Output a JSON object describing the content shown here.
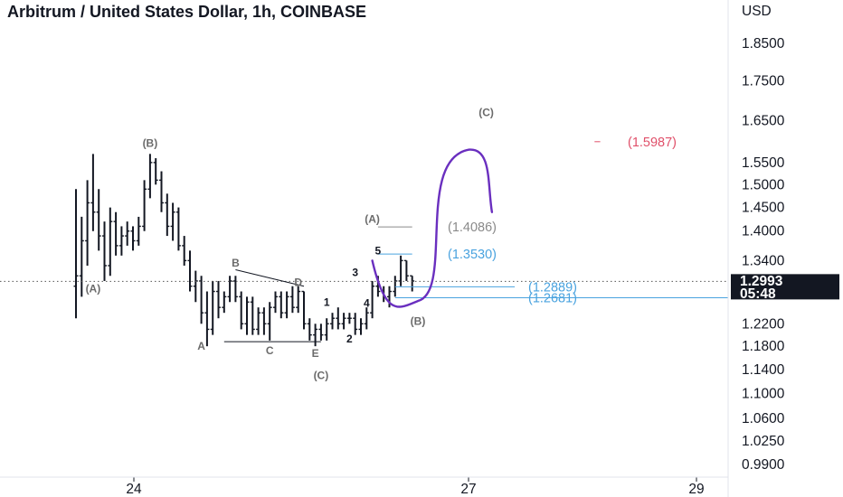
{
  "header": {
    "title": "Arbitrum / United States Dollar, 1h, COINBASE"
  },
  "price_axis": {
    "currency": "USD",
    "ticks": [
      "1.8500",
      "1.7500",
      "1.6500",
      "1.5500",
      "1.5000",
      "1.4500",
      "1.4000",
      "1.3400",
      "1.2200",
      "1.1800",
      "1.1400",
      "1.1000",
      "1.0600",
      "1.0250",
      "0.9900"
    ],
    "tick_values": [
      1.85,
      1.75,
      1.65,
      1.55,
      1.5,
      1.45,
      1.4,
      1.34,
      1.22,
      1.18,
      1.14,
      1.1,
      1.06,
      1.025,
      0.99
    ],
    "scale": "log",
    "current_price": "1.2993",
    "countdown": "05:48"
  },
  "time_axis": {
    "ticks": [
      "24",
      "27",
      "29"
    ]
  },
  "colors": {
    "candle": "#131722",
    "projection": "#6a2fbf",
    "target_text": "#e0506a",
    "fib_blue": "#4aa3df",
    "fib_grey": "#8a8a8a",
    "badge_bg": "#131722"
  },
  "chart_data": {
    "type": "ohlc",
    "title": "Arbitrum / United States Dollar, 1h, COINBASE",
    "y_scale": "log",
    "ylim": [
      0.97,
      1.95
    ],
    "x_ticks": [
      "24",
      "27",
      "29"
    ],
    "bars": [
      [
        1.29,
        1.49,
        1.23,
        1.31
      ],
      [
        1.31,
        1.43,
        1.27,
        1.38
      ],
      [
        1.38,
        1.51,
        1.33,
        1.46
      ],
      [
        1.46,
        1.57,
        1.4,
        1.44
      ],
      [
        1.44,
        1.49,
        1.36,
        1.39
      ],
      [
        1.39,
        1.42,
        1.3,
        1.33
      ],
      [
        1.33,
        1.45,
        1.31,
        1.42
      ],
      [
        1.42,
        1.44,
        1.35,
        1.37
      ],
      [
        1.37,
        1.41,
        1.35,
        1.39
      ],
      [
        1.39,
        1.42,
        1.37,
        1.4
      ],
      [
        1.4,
        1.41,
        1.36,
        1.38
      ],
      [
        1.38,
        1.43,
        1.37,
        1.41
      ],
      [
        1.41,
        1.51,
        1.4,
        1.49
      ],
      [
        1.49,
        1.57,
        1.47,
        1.55
      ],
      [
        1.55,
        1.56,
        1.5,
        1.51
      ],
      [
        1.51,
        1.53,
        1.44,
        1.46
      ],
      [
        1.46,
        1.48,
        1.39,
        1.41
      ],
      [
        1.41,
        1.46,
        1.38,
        1.44
      ],
      [
        1.44,
        1.45,
        1.36,
        1.37
      ],
      [
        1.37,
        1.39,
        1.33,
        1.34
      ],
      [
        1.34,
        1.36,
        1.28,
        1.29
      ],
      [
        1.29,
        1.32,
        1.26,
        1.3
      ],
      [
        1.3,
        1.31,
        1.22,
        1.24
      ],
      [
        1.24,
        1.28,
        1.18,
        1.21
      ],
      [
        1.21,
        1.3,
        1.2,
        1.28
      ],
      [
        1.28,
        1.3,
        1.23,
        1.25
      ],
      [
        1.25,
        1.28,
        1.24,
        1.27
      ],
      [
        1.27,
        1.31,
        1.26,
        1.3
      ],
      [
        1.3,
        1.31,
        1.26,
        1.27
      ],
      [
        1.27,
        1.28,
        1.21,
        1.22
      ],
      [
        1.22,
        1.27,
        1.2,
        1.26
      ],
      [
        1.26,
        1.27,
        1.2,
        1.21
      ],
      [
        1.21,
        1.25,
        1.2,
        1.24
      ],
      [
        1.24,
        1.25,
        1.2,
        1.22
      ],
      [
        1.22,
        1.26,
        1.19,
        1.25
      ],
      [
        1.25,
        1.28,
        1.24,
        1.27
      ],
      [
        1.27,
        1.28,
        1.23,
        1.24
      ],
      [
        1.24,
        1.28,
        1.23,
        1.27
      ],
      [
        1.27,
        1.29,
        1.24,
        1.25
      ],
      [
        1.25,
        1.29,
        1.24,
        1.28
      ],
      [
        1.28,
        1.28,
        1.21,
        1.22
      ],
      [
        1.22,
        1.23,
        1.19,
        1.2
      ],
      [
        1.2,
        1.22,
        1.18,
        1.21
      ],
      [
        1.21,
        1.22,
        1.19,
        1.2
      ],
      [
        1.2,
        1.23,
        1.19,
        1.22
      ],
      [
        1.22,
        1.24,
        1.21,
        1.23
      ],
      [
        1.23,
        1.25,
        1.21,
        1.22
      ],
      [
        1.22,
        1.24,
        1.21,
        1.23
      ],
      [
        1.23,
        1.24,
        1.22,
        1.23
      ],
      [
        1.23,
        1.24,
        1.2,
        1.21
      ],
      [
        1.21,
        1.23,
        1.2,
        1.22
      ],
      [
        1.22,
        1.25,
        1.21,
        1.24
      ],
      [
        1.24,
        1.3,
        1.23,
        1.29
      ],
      [
        1.29,
        1.31,
        1.27,
        1.28
      ],
      [
        1.28,
        1.29,
        1.26,
        1.27
      ],
      [
        1.27,
        1.29,
        1.25,
        1.28
      ],
      [
        1.28,
        1.31,
        1.27,
        1.3
      ],
      [
        1.3,
        1.35,
        1.29,
        1.34
      ],
      [
        1.34,
        1.34,
        1.3,
        1.31
      ],
      [
        1.31,
        1.31,
        1.28,
        1.3
      ]
    ],
    "wave_labels": [
      {
        "text": "(A)",
        "price": 1.285,
        "bar": 3,
        "color": "grey"
      },
      {
        "text": "(B)",
        "price": 1.595,
        "bar": 13,
        "color": "grey"
      },
      {
        "text": "A",
        "price": 1.18,
        "bar": 22,
        "color": "grey"
      },
      {
        "text": "B",
        "price": 1.335,
        "bar": 28,
        "color": "grey"
      },
      {
        "text": "C",
        "price": 1.172,
        "bar": 34,
        "color": "grey"
      },
      {
        "text": "D",
        "price": 1.297,
        "bar": 39,
        "color": "grey"
      },
      {
        "text": "E",
        "price": 1.168,
        "bar": 42,
        "color": "grey"
      },
      {
        "text": "(C)",
        "price": 1.13,
        "bar": 43,
        "color": "grey"
      },
      {
        "text": "1",
        "price": 1.26,
        "bar": 44,
        "color": "black"
      },
      {
        "text": "2",
        "price": 1.193,
        "bar": 48,
        "color": "black"
      },
      {
        "text": "3",
        "price": 1.317,
        "bar": 49,
        "color": "black"
      },
      {
        "text": "4",
        "price": 1.258,
        "bar": 51,
        "color": "black"
      },
      {
        "text": "5",
        "price": 1.36,
        "bar": 53,
        "color": "black"
      },
      {
        "text": "(A)",
        "price": 1.425,
        "bar": 52,
        "color": "grey"
      },
      {
        "text": "(B)",
        "price": 1.225,
        "bar": 60,
        "color": "grey"
      },
      {
        "text": "(C)",
        "price": 1.67,
        "bar": 72,
        "color": "grey"
      }
    ],
    "levels": [
      {
        "label": "(1.4086)",
        "price": 1.4086,
        "color": "grey"
      },
      {
        "label": "(1.3530)",
        "price": 1.353,
        "color": "blue"
      },
      {
        "label": "(1.2889)",
        "price": 1.2889,
        "color": "blue"
      },
      {
        "label": "(1.2681)",
        "price": 1.2681,
        "color": "blue"
      },
      {
        "label": "(1.5987)",
        "price": 1.5987,
        "color": "red"
      }
    ],
    "projection": [
      {
        "bar": 52,
        "price": 1.34
      },
      {
        "bar": 60,
        "price": 1.262
      },
      {
        "bar": 69,
        "price": 1.58
      },
      {
        "bar": 73,
        "price": 1.44
      }
    ]
  }
}
